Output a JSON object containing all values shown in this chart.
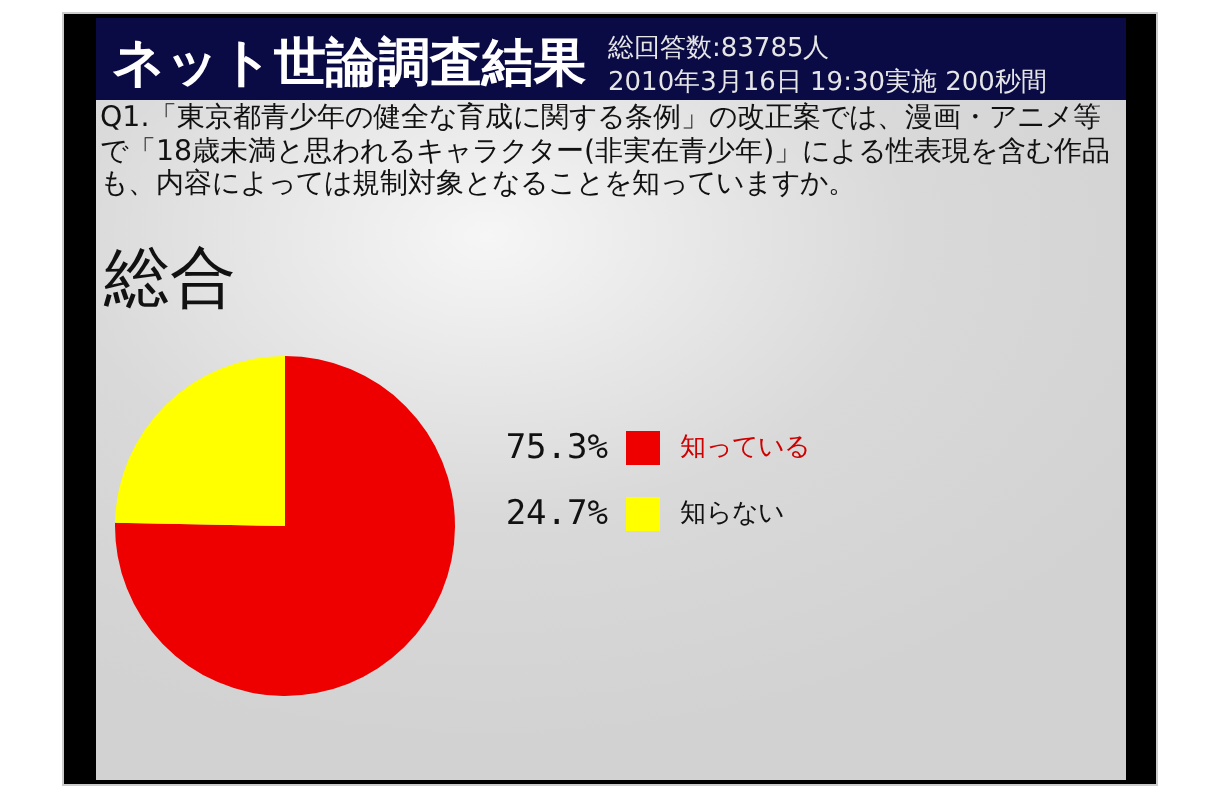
{
  "chart_data": {
    "type": "pie",
    "title": "ネット世論調査結果",
    "subtitle": "Q1.「東京都青少年の健全な育成に関する条例」の改正案では、漫画・アニメ等で「18歳未満と思われるキャラクター(非実在青少年)」による性表現を含む作品も、内容によっては規制対象となることを知っていますか。",
    "annotations": [
      "総回答数:83785人",
      "2010年3月16日 19:30実施 200秒間",
      "総合"
    ],
    "categories": [
      "知っている",
      "知らない"
    ],
    "values": [
      75.3,
      24.7
    ],
    "colors": [
      "#ee0000",
      "#ffff00"
    ],
    "value_labels": [
      "75.3%",
      "24.7%"
    ],
    "legend": "right"
  }
}
